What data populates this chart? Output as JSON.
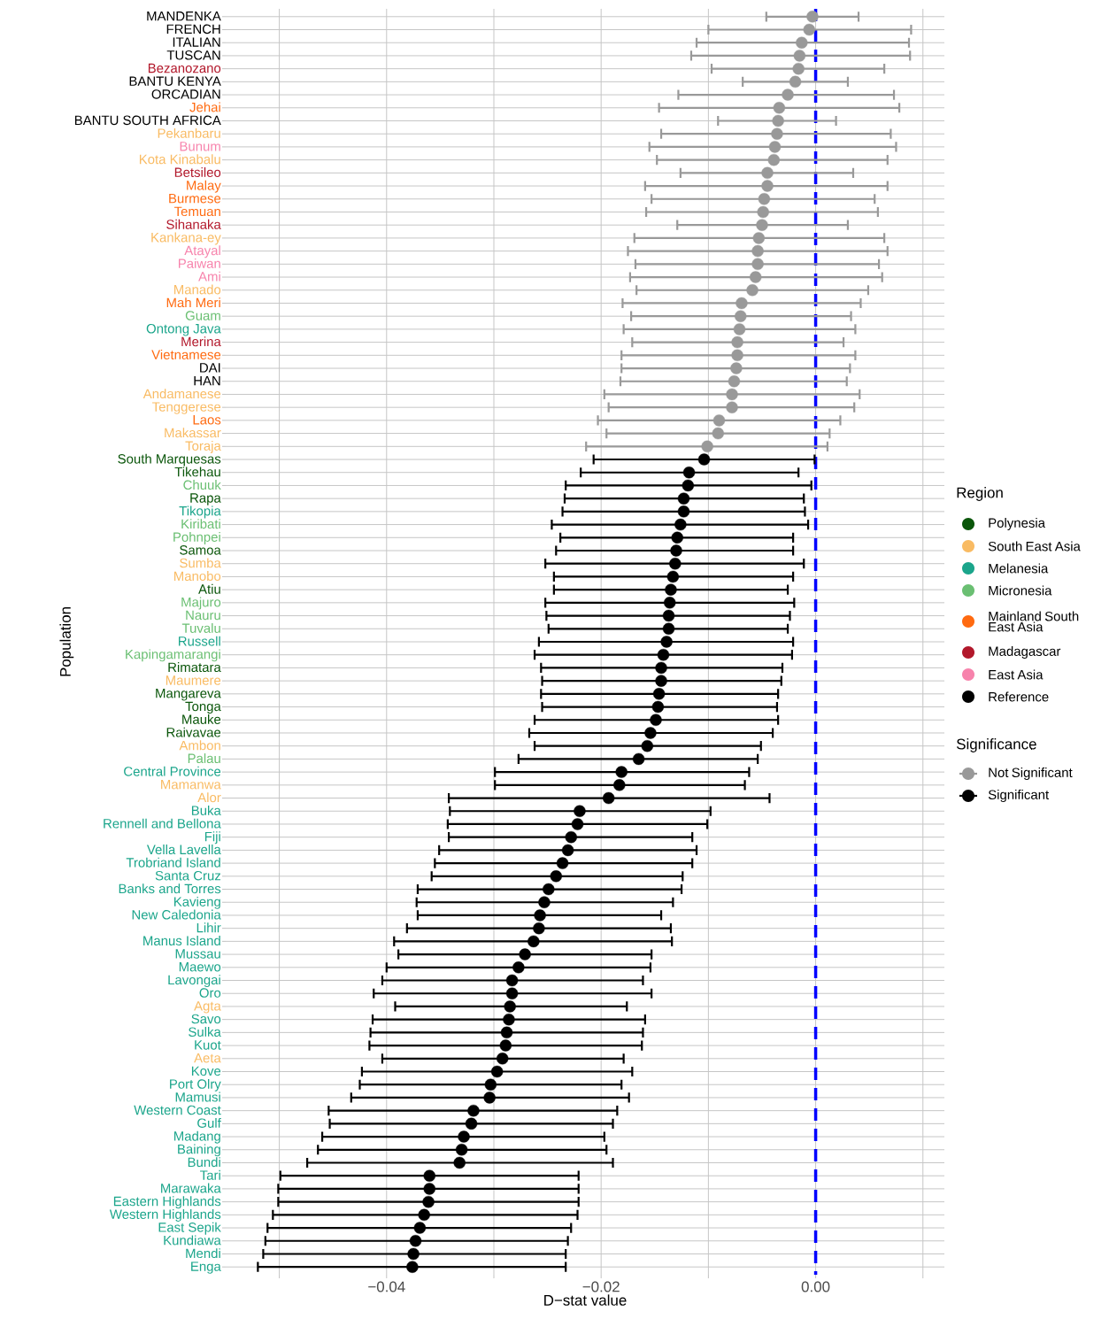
{
  "chart_data": {
    "type": "scatter",
    "orientation": "horizontal",
    "xlabel": "D−stat value",
    "ylabel": "Population",
    "legend_title": "Region",
    "annotations": [
      "Significance"
    ],
    "categories": [
      "MANDENKA",
      "FRENCH",
      "ITALIAN",
      "TUSCAN",
      "Bezanozano",
      "BANTU KENYA",
      "ORCADIAN",
      "Jehai",
      "BANTU SOUTH AFRICA",
      "Pekanbaru",
      "Bunum",
      "Kota Kinabalu",
      "Betsileo",
      "Malay",
      "Burmese",
      "Temuan",
      "Sihanaka",
      "Kankana-ey",
      "Atayal",
      "Paiwan",
      "Ami",
      "Manado",
      "Mah Meri",
      "Guam",
      "Ontong Java",
      "Merina",
      "Vietnamese",
      "DAI",
      "HAN",
      "Andamanese",
      "Tenggerese",
      "Laos",
      "Makassar",
      "Toraja",
      "South Marquesas",
      "Tikehau",
      "Chuuk",
      "Rapa",
      "Tikopia",
      "Kiribati",
      "Pohnpei",
      "Samoa",
      "Sumba",
      "Manobo",
      "Atiu",
      "Majuro",
      "Nauru",
      "Tuvalu",
      "Russell",
      "Kapingamarangi",
      "Rimatara",
      "Maumere",
      "Mangareva",
      "Tonga",
      "Mauke",
      "Raivavae",
      "Ambon",
      "Palau",
      "Central Province",
      "Mamanwa",
      "Alor",
      "Buka",
      "Rennell and Bellona",
      "Fiji",
      "Vella Lavella",
      "Trobriand Island",
      "Santa Cruz",
      "Banks and Torres",
      "Kavieng",
      "New Caledonia",
      "Lihir",
      "Manus Island",
      "Mussau",
      "Maewo",
      "Lavongai",
      "Oro",
      "Agta",
      "Savo",
      "Sulka",
      "Kuot",
      "Aeta",
      "Kove",
      "Port Olry",
      "Mamusi",
      "Western Coast",
      "Gulf",
      "Madang",
      "Baining",
      "Bundi",
      "Tari",
      "Marawaka",
      "Eastern Highlands",
      "Western Highlands",
      "East Sepik",
      "Kundiawa",
      "Mendi",
      "Enga"
    ],
    "colors": [
      "#000000",
      "#000000",
      "#000000",
      "#000000",
      "#b2182b",
      "#000000",
      "#000000",
      "#ff6a10",
      "#000000",
      "#f9bb63",
      "#f783ac",
      "#f9bb63",
      "#b2182b",
      "#ff6a10",
      "#ff6a10",
      "#ff6a10",
      "#b2182b",
      "#f9bb63",
      "#f783ac",
      "#f783ac",
      "#f783ac",
      "#f9bb63",
      "#ff6a10",
      "#6abf72",
      "#1ba58b",
      "#b2182b",
      "#ff6a10",
      "#000000",
      "#000000",
      "#f9bb63",
      "#f9bb63",
      "#ff6a10",
      "#f9bb63",
      "#f9bb63",
      "#0b560b",
      "#0b560b",
      "#6abf72",
      "#0b560b",
      "#1ba58b",
      "#6abf72",
      "#6abf72",
      "#0b560b",
      "#f9bb63",
      "#f9bb63",
      "#0b560b",
      "#6abf72",
      "#6abf72",
      "#6abf72",
      "#1ba58b",
      "#6abf72",
      "#0b560b",
      "#f9bb63",
      "#0b560b",
      "#0b560b",
      "#0b560b",
      "#0b560b",
      "#f9bb63",
      "#6abf72",
      "#1ba58b",
      "#f9bb63",
      "#f9bb63",
      "#1ba58b",
      "#1ba58b",
      "#1ba58b",
      "#1ba58b",
      "#1ba58b",
      "#1ba58b",
      "#1ba58b",
      "#1ba58b",
      "#1ba58b",
      "#1ba58b",
      "#1ba58b",
      "#1ba58b",
      "#1ba58b",
      "#1ba58b",
      "#1ba58b",
      "#f9bb63",
      "#1ba58b",
      "#1ba58b",
      "#1ba58b",
      "#f9bb63",
      "#1ba58b",
      "#1ba58b",
      "#1ba58b",
      "#1ba58b",
      "#1ba58b",
      "#1ba58b",
      "#1ba58b",
      "#1ba58b",
      "#1ba58b",
      "#1ba58b",
      "#1ba58b",
      "#1ba58b",
      "#1ba58b",
      "#1ba58b",
      "#1ba58b",
      "#1ba58b"
    ],
    "xlim": [
      -0.055,
      0.012
    ],
    "xticks": [
      {
        "value": -0.05,
        "label": null
      },
      {
        "value": -0.04,
        "label": "−0.04"
      },
      {
        "value": -0.03,
        "label": null
      },
      {
        "value": -0.02,
        "label": "−0.02"
      },
      {
        "value": -0.01,
        "label": null
      },
      {
        "value": 0.0,
        "label": "0.00"
      },
      {
        "value": 0.01,
        "label": null
      }
    ],
    "grid": true,
    "legend": "right",
    "marker": "circle",
    "ref_lines": [
      {
        "axis": "x",
        "value": 0,
        "color": "#0000ff",
        "line_style": "dashed"
      }
    ],
    "series": [
      {
        "name": "Polynesia",
        "color": "#0b560b",
        "values": [
          null,
          null,
          null,
          null,
          null,
          null,
          null,
          null,
          null,
          null,
          null,
          null,
          null,
          null,
          null,
          null,
          null,
          null,
          null,
          null,
          null,
          null,
          null,
          null,
          null,
          null,
          null,
          null,
          null,
          null,
          null,
          null,
          null,
          null,
          null,
          null,
          null,
          null,
          null,
          null,
          null,
          null,
          null,
          null,
          null,
          null,
          null,
          null,
          null,
          null,
          null,
          null,
          null,
          null,
          null,
          null,
          null,
          null,
          null,
          null,
          null,
          null,
          null,
          null,
          null,
          null,
          null,
          null,
          null,
          null,
          null,
          null,
          null,
          null,
          null,
          null,
          null,
          null,
          null,
          null,
          null,
          null,
          null,
          null,
          null,
          null,
          null,
          null,
          null,
          null,
          null,
          null,
          null,
          null,
          null,
          null,
          null
        ]
      },
      {
        "name": "South East Asia",
        "color": "#f9bb63",
        "values": [
          null,
          null,
          null,
          null,
          null,
          null,
          null,
          null,
          null,
          null,
          null,
          null,
          null,
          null,
          null,
          null,
          null,
          null,
          null,
          null,
          null,
          null,
          null,
          null,
          null,
          null,
          null,
          null,
          null,
          null,
          null,
          null,
          null,
          null,
          null,
          null,
          null,
          null,
          null,
          null,
          null,
          null,
          null,
          null,
          null,
          null,
          null,
          null,
          null,
          null,
          null,
          null,
          null,
          null,
          null,
          null,
          null,
          null,
          null,
          null,
          null,
          null,
          null,
          null,
          null,
          null,
          null,
          null,
          null,
          null,
          null,
          null,
          null,
          null,
          null,
          null,
          null,
          null,
          null,
          null,
          null,
          null,
          null,
          null,
          null,
          null,
          null,
          null,
          null,
          null,
          null,
          null,
          null,
          null,
          null,
          null,
          null
        ]
      },
      {
        "name": "Melanesia",
        "color": "#1ba58b",
        "values": [
          null,
          null,
          null,
          null,
          null,
          null,
          null,
          null,
          null,
          null,
          null,
          null,
          null,
          null,
          null,
          null,
          null,
          null,
          null,
          null,
          null,
          null,
          null,
          null,
          null,
          null,
          null,
          null,
          null,
          null,
          null,
          null,
          null,
          null,
          null,
          null,
          null,
          null,
          null,
          null,
          null,
          null,
          null,
          null,
          null,
          null,
          null,
          null,
          null,
          null,
          null,
          null,
          null,
          null,
          null,
          null,
          null,
          null,
          null,
          null,
          null,
          null,
          null,
          null,
          null,
          null,
          null,
          null,
          null,
          null,
          null,
          null,
          null,
          null,
          null,
          null,
          null,
          null,
          null,
          null,
          null,
          null,
          null,
          null,
          null,
          null,
          null,
          null,
          null,
          null,
          null,
          null,
          null,
          null,
          null,
          null,
          null
        ]
      },
      {
        "name": "Micronesia",
        "color": "#6abf72",
        "values": [
          null,
          null,
          null,
          null,
          null,
          null,
          null,
          null,
          null,
          null,
          null,
          null,
          null,
          null,
          null,
          null,
          null,
          null,
          null,
          null,
          null,
          null,
          null,
          null,
          null,
          null,
          null,
          null,
          null,
          null,
          null,
          null,
          null,
          null,
          null,
          null,
          null,
          null,
          null,
          null,
          null,
          null,
          null,
          null,
          null,
          null,
          null,
          null,
          null,
          null,
          null,
          null,
          null,
          null,
          null,
          null,
          null,
          null,
          null,
          null,
          null,
          null,
          null,
          null,
          null,
          null,
          null,
          null,
          null,
          null,
          null,
          null,
          null,
          null,
          null,
          null,
          null,
          null,
          null,
          null,
          null,
          null,
          null,
          null,
          null,
          null,
          null,
          null,
          null,
          null,
          null,
          null,
          null,
          null,
          null,
          null,
          null
        ]
      },
      {
        "name": "Mainland South East Asia",
        "color": "#ff6a10",
        "values": [
          null,
          null,
          null,
          null,
          null,
          null,
          null,
          null,
          null,
          null,
          null,
          null,
          null,
          null,
          null,
          null,
          null,
          null,
          null,
          null,
          null,
          null,
          null,
          null,
          null,
          null,
          null,
          null,
          null,
          null,
          null,
          null,
          null,
          null,
          null,
          null,
          null,
          null,
          null,
          null,
          null,
          null,
          null,
          null,
          null,
          null,
          null,
          null,
          null,
          null,
          null,
          null,
          null,
          null,
          null,
          null,
          null,
          null,
          null,
          null,
          null,
          null,
          null,
          null,
          null,
          null,
          null,
          null,
          null,
          null,
          null,
          null,
          null,
          null,
          null,
          null,
          null,
          null,
          null,
          null,
          null,
          null,
          null,
          null,
          null,
          null,
          null,
          null,
          null,
          null,
          null,
          null,
          null,
          null,
          null,
          null,
          null
        ]
      },
      {
        "name": "Madagascar",
        "color": "#b2182b",
        "values": [
          null,
          null,
          null,
          null,
          null,
          null,
          null,
          null,
          null,
          null,
          null,
          null,
          null,
          null,
          null,
          null,
          null,
          null,
          null,
          null,
          null,
          null,
          null,
          null,
          null,
          null,
          null,
          null,
          null,
          null,
          null,
          null,
          null,
          null,
          null,
          null,
          null,
          null,
          null,
          null,
          null,
          null,
          null,
          null,
          null,
          null,
          null,
          null,
          null,
          null,
          null,
          null,
          null,
          null,
          null,
          null,
          null,
          null,
          null,
          null,
          null,
          null,
          null,
          null,
          null,
          null,
          null,
          null,
          null,
          null,
          null,
          null,
          null,
          null,
          null,
          null,
          null,
          null,
          null,
          null,
          null,
          null,
          null,
          null,
          null,
          null,
          null,
          null,
          null,
          null,
          null,
          null,
          null,
          null,
          null,
          null,
          null
        ]
      },
      {
        "name": "East Asia",
        "color": "#f783ac",
        "values": [
          null,
          null,
          null,
          null,
          null,
          null,
          null,
          null,
          null,
          null,
          null,
          null,
          null,
          null,
          null,
          null,
          null,
          null,
          null,
          null,
          null,
          null,
          null,
          null,
          null,
          null,
          null,
          null,
          null,
          null,
          null,
          null,
          null,
          null,
          null,
          null,
          null,
          null,
          null,
          null,
          null,
          null,
          null,
          null,
          null,
          null,
          null,
          null,
          null,
          null,
          null,
          null,
          null,
          null,
          null,
          null,
          null,
          null,
          null,
          null,
          null,
          null,
          null,
          null,
          null,
          null,
          null,
          null,
          null,
          null,
          null,
          null,
          null,
          null,
          null,
          null,
          null,
          null,
          null,
          null,
          null,
          null,
          null,
          null,
          null,
          null,
          null,
          null,
          null,
          null,
          null,
          null,
          null,
          null,
          null,
          null,
          null
        ]
      },
      {
        "name": "Reference",
        "color": "#000000",
        "values": [
          null,
          null,
          null,
          null,
          null,
          null,
          null,
          null,
          null,
          null,
          null,
          null,
          null,
          null,
          null,
          null,
          null,
          null,
          null,
          null,
          null,
          null,
          null,
          null,
          null,
          null,
          null,
          null,
          null,
          null,
          null,
          null,
          null,
          null,
          null,
          null,
          null,
          null,
          null,
          null,
          null,
          null,
          null,
          null,
          null,
          null,
          null,
          null,
          null,
          null,
          null,
          null,
          null,
          null,
          null,
          null,
          null,
          null,
          null,
          null,
          null,
          null,
          null,
          null,
          null,
          null,
          null,
          null,
          null,
          null,
          null,
          null,
          null,
          null,
          null,
          null,
          null,
          null,
          null,
          null,
          null,
          null,
          null,
          null,
          null,
          null,
          null,
          null,
          null,
          null,
          null,
          null,
          null,
          null,
          null,
          null,
          null
        ]
      },
      {
        "name": "Not Significant",
        "color": "#999999",
        "values": [
          -0.0003,
          -0.0006,
          -0.0013,
          -0.0015,
          -0.0016,
          -0.0019,
          -0.0026,
          -0.0034,
          -0.0035,
          -0.0036,
          -0.0038,
          -0.0039,
          -0.0045,
          -0.0045,
          -0.0048,
          -0.0049,
          -0.005,
          -0.0053,
          -0.0054,
          -0.0054,
          -0.0056,
          -0.0059,
          -0.0069,
          -0.007,
          -0.0071,
          -0.0073,
          -0.0073,
          -0.0074,
          -0.0076,
          -0.0078,
          -0.0078,
          -0.009,
          -0.0091,
          -0.0101,
          null,
          null,
          null,
          null,
          null,
          null,
          null,
          null,
          null,
          null,
          null,
          null,
          null,
          null,
          null,
          null,
          null,
          null,
          null,
          null,
          null,
          null,
          null,
          null,
          null,
          null,
          null,
          null,
          null,
          null,
          null,
          null,
          null,
          null,
          null,
          null,
          null,
          null,
          null,
          null,
          null,
          null,
          null,
          null,
          null,
          null,
          null,
          null,
          null,
          null,
          null,
          null,
          null,
          null,
          null,
          null,
          null,
          null,
          null,
          null,
          null,
          null,
          null
        ],
        "errors": [
          [
            -0.0046,
            0.004
          ],
          [
            -0.01,
            0.0089
          ],
          [
            -0.0111,
            0.0087
          ],
          [
            -0.0116,
            0.0088
          ],
          [
            -0.0097,
            0.0064
          ],
          [
            -0.0068,
            0.003
          ],
          [
            -0.0128,
            0.0073
          ],
          [
            -0.0146,
            0.0078
          ],
          [
            -0.0091,
            0.0019
          ],
          [
            -0.0144,
            0.007
          ],
          [
            -0.0155,
            0.0075
          ],
          [
            -0.0148,
            0.0067
          ],
          [
            -0.0126,
            0.0035
          ],
          [
            -0.0159,
            0.0067
          ],
          [
            -0.0153,
            0.0055
          ],
          [
            -0.0158,
            0.0058
          ],
          [
            -0.0129,
            0.003
          ],
          [
            -0.0169,
            0.0064
          ],
          [
            -0.0175,
            0.0067
          ],
          [
            -0.0168,
            0.0059
          ],
          [
            -0.0173,
            0.0062
          ],
          [
            -0.0167,
            0.0049
          ],
          [
            -0.018,
            0.0042
          ],
          [
            -0.0172,
            0.0033
          ],
          [
            -0.0179,
            0.0037
          ],
          [
            -0.0171,
            0.0026
          ],
          [
            -0.0181,
            0.0037
          ],
          [
            -0.0181,
            0.0032
          ],
          [
            -0.0182,
            0.0029
          ],
          [
            -0.0197,
            0.0041
          ],
          [
            -0.0193,
            0.0036
          ],
          [
            -0.0203,
            0.0023
          ],
          [
            -0.0195,
            0.0013
          ],
          [
            -0.0214,
            0.0011
          ],
          null,
          null,
          null,
          null,
          null,
          null,
          null,
          null,
          null,
          null,
          null,
          null,
          null,
          null,
          null,
          null,
          null,
          null,
          null,
          null,
          null,
          null,
          null,
          null,
          null,
          null,
          null,
          null,
          null,
          null,
          null,
          null,
          null,
          null,
          null,
          null,
          null,
          null,
          null,
          null,
          null,
          null,
          null,
          null,
          null,
          null,
          null,
          null,
          null,
          null,
          null,
          null,
          null,
          null,
          null,
          null,
          null,
          null,
          null,
          null,
          null,
          null,
          null
        ]
      },
      {
        "name": "Significant",
        "color": "#000000",
        "values": [
          null,
          null,
          null,
          null,
          null,
          null,
          null,
          null,
          null,
          null,
          null,
          null,
          null,
          null,
          null,
          null,
          null,
          null,
          null,
          null,
          null,
          null,
          null,
          null,
          null,
          null,
          null,
          null,
          null,
          null,
          null,
          null,
          null,
          null,
          -0.0104,
          -0.0118,
          -0.0119,
          -0.0123,
          -0.0123,
          -0.0126,
          -0.0129,
          -0.013,
          -0.0131,
          -0.0133,
          -0.0135,
          -0.0136,
          -0.0137,
          -0.0137,
          -0.0139,
          -0.0142,
          -0.0144,
          -0.0144,
          -0.0146,
          -0.0147,
          -0.0149,
          -0.0154,
          -0.0157,
          -0.0165,
          -0.0181,
          -0.0183,
          -0.0193,
          -0.022,
          -0.0222,
          -0.0228,
          -0.0231,
          -0.0236,
          -0.0242,
          -0.0249,
          -0.0253,
          -0.0257,
          -0.0258,
          -0.0263,
          -0.0271,
          -0.0277,
          -0.0283,
          -0.0283,
          -0.0285,
          -0.0286,
          -0.0288,
          -0.0289,
          -0.0292,
          -0.0297,
          -0.0303,
          -0.0304,
          -0.0319,
          -0.0321,
          -0.0328,
          -0.033,
          -0.0332,
          -0.036,
          -0.036,
          -0.0361,
          -0.0365,
          -0.0369,
          -0.0373,
          -0.0375,
          -0.0376
        ],
        "errors": [
          null,
          null,
          null,
          null,
          null,
          null,
          null,
          null,
          null,
          null,
          null,
          null,
          null,
          null,
          null,
          null,
          null,
          null,
          null,
          null,
          null,
          null,
          null,
          null,
          null,
          null,
          null,
          null,
          null,
          null,
          null,
          null,
          null,
          null,
          [
            -0.0207,
            -0.0001
          ],
          [
            -0.0219,
            -0.0016
          ],
          [
            -0.0233,
            -0.0004
          ],
          [
            -0.0234,
            -0.0011
          ],
          [
            -0.0236,
            -0.001
          ],
          [
            -0.0246,
            -0.0007
          ],
          [
            -0.0238,
            -0.0021
          ],
          [
            -0.0242,
            -0.0021
          ],
          [
            -0.0252,
            -0.0011
          ],
          [
            -0.0244,
            -0.0021
          ],
          [
            -0.0244,
            -0.0026
          ],
          [
            -0.0252,
            -0.002
          ],
          [
            -0.0251,
            -0.0024
          ],
          [
            -0.0249,
            -0.0026
          ],
          [
            -0.0258,
            -0.0021
          ],
          [
            -0.0262,
            -0.0022
          ],
          [
            -0.0256,
            -0.0031
          ],
          [
            -0.0255,
            -0.0032
          ],
          [
            -0.0256,
            -0.0035
          ],
          [
            -0.0255,
            -0.0036
          ],
          [
            -0.0262,
            -0.0035
          ],
          [
            -0.0267,
            -0.004
          ],
          [
            -0.0262,
            -0.0051
          ],
          [
            -0.0277,
            -0.0054
          ],
          [
            -0.0299,
            -0.0062
          ],
          [
            -0.0299,
            -0.0066
          ],
          [
            -0.0342,
            -0.0043
          ],
          [
            -0.0341,
            -0.0098
          ],
          [
            -0.0343,
            -0.0101
          ],
          [
            -0.0342,
            -0.0115
          ],
          [
            -0.0351,
            -0.0111
          ],
          [
            -0.0355,
            -0.0115
          ],
          [
            -0.0358,
            -0.0124
          ],
          [
            -0.0371,
            -0.0125
          ],
          [
            -0.0372,
            -0.0133
          ],
          [
            -0.0371,
            -0.0144
          ],
          [
            -0.0381,
            -0.0135
          ],
          [
            -0.0393,
            -0.0134
          ],
          [
            -0.0389,
            -0.0153
          ],
          [
            -0.04,
            -0.0154
          ],
          [
            -0.0404,
            -0.0161
          ],
          [
            -0.0412,
            -0.0153
          ],
          [
            -0.0392,
            -0.0176
          ],
          [
            -0.0413,
            -0.0159
          ],
          [
            -0.0415,
            -0.0161
          ],
          [
            -0.0416,
            -0.0162
          ],
          [
            -0.0404,
            -0.0179
          ],
          [
            -0.0423,
            -0.0171
          ],
          [
            -0.0425,
            -0.0181
          ],
          [
            -0.0433,
            -0.0174
          ],
          [
            -0.0454,
            -0.0185
          ],
          [
            -0.0453,
            -0.0189
          ],
          [
            -0.046,
            -0.0197
          ],
          [
            -0.0464,
            -0.0195
          ],
          [
            -0.0474,
            -0.0189
          ],
          [
            -0.0499,
            -0.0221
          ],
          [
            -0.0501,
            -0.0221
          ],
          [
            -0.0501,
            -0.0221
          ],
          [
            -0.0506,
            -0.0222
          ],
          [
            -0.0511,
            -0.0228
          ],
          [
            -0.0513,
            -0.0231
          ],
          [
            -0.0515,
            -0.0233
          ],
          [
            -0.052,
            -0.0233
          ]
        ]
      }
    ]
  }
}
